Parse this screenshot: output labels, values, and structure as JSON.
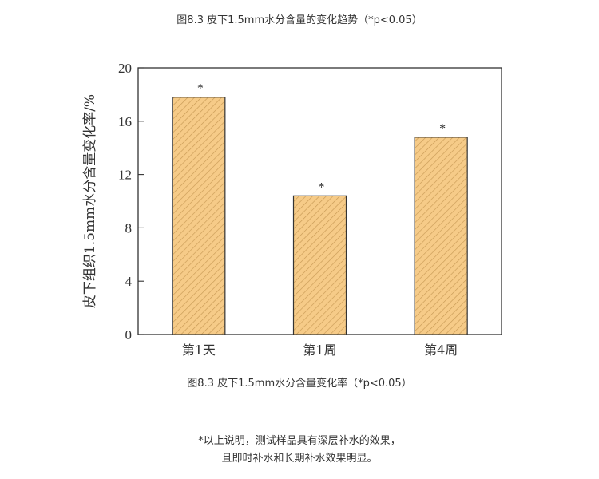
{
  "header": {
    "title": "图8.3  皮下1.5mm水分含量的变化趋势（*p<0.05）"
  },
  "chart_data": {
    "type": "bar",
    "title": "",
    "xlabel": "",
    "ylabel": "皮下组织1.5mm水分含量变化率/%",
    "categories": [
      "第1天",
      "第1周",
      "第4周"
    ],
    "values": [
      17.8,
      10.4,
      14.8
    ],
    "annotations": [
      "*",
      "*",
      "*"
    ],
    "ylim": [
      0,
      20
    ],
    "yticks": [
      0,
      4,
      8,
      12,
      16,
      20
    ],
    "grid": false,
    "bar_color": "#f6cb88",
    "hatch_color": "#c89a55"
  },
  "caption": {
    "text": "图8.3  皮下1.5mm水分含量变化率（*p<0.05）"
  },
  "note": {
    "line1": "*以上说明，测试样品具有深层补水的效果，",
    "line2": "且即时补水和长期补水效果明显。"
  }
}
